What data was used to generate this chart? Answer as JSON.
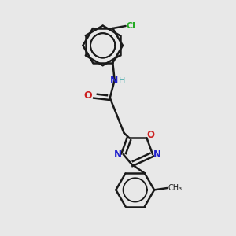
{
  "background_color": "#e8e8e8",
  "bond_color": "#1a1a1a",
  "bond_width": 1.8,
  "figsize": [
    3.0,
    3.0
  ],
  "dpi": 100,
  "colors": {
    "N": "#2020cc",
    "O": "#cc2020",
    "Cl": "#22aa22",
    "H": "#44aaaa",
    "C": "#1a1a1a"
  }
}
